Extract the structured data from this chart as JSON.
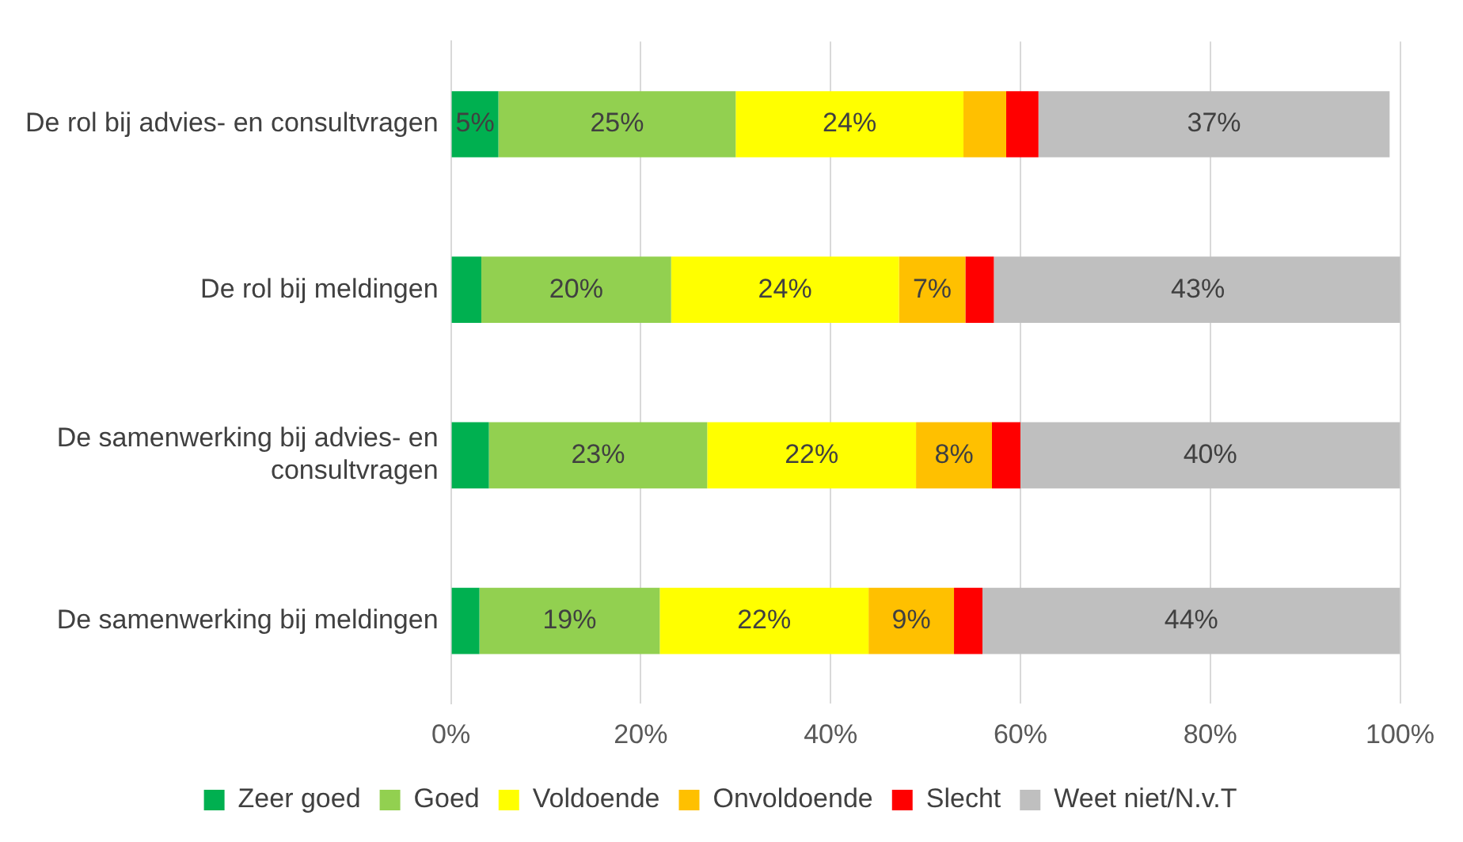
{
  "chart_data": {
    "type": "bar",
    "orientation": "horizontal",
    "stacked": true,
    "categories": [
      "De rol bij advies- en consultvragen",
      "De rol bij meldingen",
      "De samenwerking bij advies- en consultvragen",
      "De samenwerking bij meldingen"
    ],
    "series": [
      {
        "name": "Zeer goed",
        "color": "#00b050",
        "values": [
          5,
          3.2,
          4,
          3
        ],
        "value_labels": [
          "5%",
          null,
          null,
          null
        ]
      },
      {
        "name": "Goed",
        "color": "#92d050",
        "values": [
          25,
          20,
          23,
          19
        ],
        "value_labels": [
          "25%",
          "20%",
          "23%",
          "19%"
        ]
      },
      {
        "name": "Voldoende",
        "color": "#ffff00",
        "values": [
          24,
          24,
          22,
          22
        ],
        "value_labels": [
          "24%",
          "24%",
          "22%",
          "22%"
        ]
      },
      {
        "name": "Onvoldoende",
        "color": "#ffc000",
        "values": [
          4.5,
          7,
          8,
          9
        ],
        "value_labels": [
          null,
          "7%",
          "8%",
          "9%"
        ]
      },
      {
        "name": "Slecht",
        "color": "#ff0000",
        "values": [
          3.4,
          3,
          3,
          3
        ],
        "value_labels": [
          null,
          null,
          null,
          null
        ]
      },
      {
        "name": "Weet niet/N.v.T",
        "color": "#bfbfbf",
        "values": [
          37,
          43,
          40,
          44
        ],
        "value_labels": [
          "37%",
          "43%",
          "40%",
          "44%"
        ]
      }
    ],
    "xlim": [
      0,
      100
    ],
    "xticks": [
      {
        "value": 0,
        "label": "0%"
      },
      {
        "value": 20,
        "label": "20%"
      },
      {
        "value": 40,
        "label": "40%"
      },
      {
        "value": 60,
        "label": "60%"
      },
      {
        "value": 80,
        "label": "80%"
      },
      {
        "value": 100,
        "label": "100%"
      }
    ],
    "grid": "x",
    "legend": "bottom"
  }
}
